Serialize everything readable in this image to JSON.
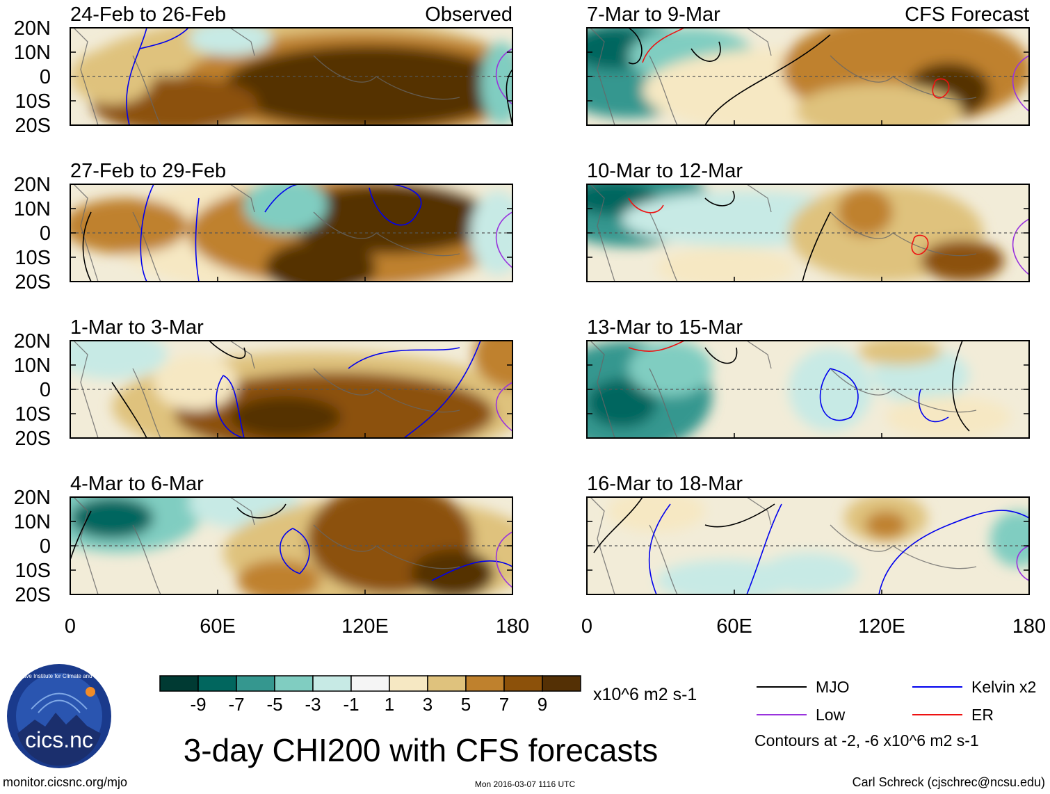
{
  "chart_data": {
    "type": "heatmap",
    "title": "3-day CHI200 with CFS forecasts",
    "variable": "CHI200 anomaly",
    "units": "x10^6 m2 s-1",
    "x_axis": {
      "range": [
        0,
        180
      ],
      "ticks": [
        0,
        60,
        120,
        180
      ],
      "tick_labels": [
        "0",
        "60E",
        "120E",
        "180"
      ]
    },
    "y_axis": {
      "range": [
        -20,
        20
      ],
      "ticks": [
        20,
        10,
        0,
        -10,
        -20
      ],
      "tick_labels": [
        "20N",
        "10N",
        "0",
        "10S",
        "20S"
      ]
    },
    "colorbar": {
      "labels": [
        "-9",
        "-7",
        "-5",
        "-3",
        "-1",
        "1",
        "3",
        "5",
        "7",
        "9"
      ],
      "colors": [
        "#003a33",
        "#01665e",
        "#35978f",
        "#80cdc1",
        "#c7eae5",
        "#f5f5f5",
        "#f6e8c3",
        "#dfc27d",
        "#bf812d",
        "#8c510a",
        "#543005"
      ],
      "units_label": "x10^6 m2 s-1"
    },
    "panels": [
      {
        "period": "24-Feb to 26-Feb",
        "tag": "Observed",
        "column": "left"
      },
      {
        "period": "27-Feb to 29-Feb",
        "tag": "",
        "column": "left"
      },
      {
        "period": "1-Mar to 3-Mar",
        "tag": "",
        "column": "left"
      },
      {
        "period": "4-Mar to 6-Mar",
        "tag": "",
        "column": "left"
      },
      {
        "period": "7-Mar to 9-Mar",
        "tag": "CFS Forecast",
        "column": "right"
      },
      {
        "period": "10-Mar to 12-Mar",
        "tag": "",
        "column": "right"
      },
      {
        "period": "13-Mar to 15-Mar",
        "tag": "",
        "column": "right"
      },
      {
        "period": "16-Mar to 18-Mar",
        "tag": "",
        "column": "right"
      }
    ],
    "legend": [
      {
        "label": "MJO",
        "color": "#000000"
      },
      {
        "label": "Kelvin x2",
        "color": "#0000ee"
      },
      {
        "label": "Low",
        "color": "#9933dd"
      },
      {
        "label": "ER",
        "color": "#ee1111"
      }
    ],
    "contour_note": "Contours at -2, -6 x10^6 m2 s-1"
  },
  "footer": {
    "url": "monitor.cicsnc.org/mjo",
    "timestamp": "Mon 2016-03-07 1116 UTC",
    "author": "Carl Schreck (cjschrec@ncsu.edu)"
  },
  "logo": {
    "text": "cics.nc",
    "ring_text": "Cooperative Institute for Climate and Satellites"
  }
}
